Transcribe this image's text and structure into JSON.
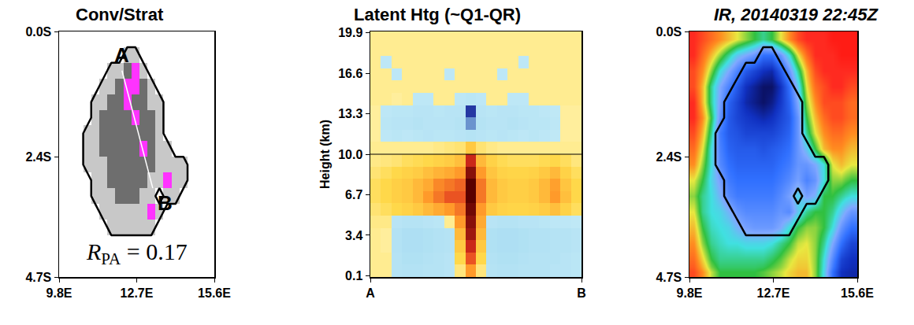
{
  "chart_data": [
    {
      "type": "heatmap",
      "title": "Conv/Strat",
      "x_edges": [
        9.8,
        10.1,
        10.4,
        10.7,
        11.0,
        11.3,
        11.6,
        11.9,
        12.2,
        12.5,
        12.8,
        13.1,
        13.4,
        13.7,
        14.0,
        14.3,
        14.6,
        14.9,
        15.2,
        15.6
      ],
      "y_edges": [
        0,
        -0.3,
        -0.6,
        -0.9,
        -1.2,
        -1.5,
        -1.8,
        -2.1,
        -2.4,
        -2.7,
        -3.0,
        -3.3,
        -3.6,
        -3.9,
        -4.2,
        -4.5,
        -4.7
      ],
      "values": [
        [
          0,
          0,
          0,
          0,
          0,
          0,
          0,
          0,
          0,
          0,
          0,
          0,
          0,
          0,
          0,
          0,
          0,
          0,
          0
        ],
        [
          0,
          0,
          0,
          0,
          0,
          0,
          0,
          0,
          1,
          1,
          0,
          0,
          0,
          0,
          0,
          0,
          0,
          0,
          0
        ],
        [
          0,
          0,
          0,
          0,
          0,
          0,
          1,
          1,
          2,
          3,
          1,
          0,
          0,
          0,
          0,
          0,
          0,
          0,
          0
        ],
        [
          0,
          0,
          0,
          0,
          0,
          1,
          1,
          2,
          3,
          3,
          2,
          1,
          0,
          0,
          0,
          0,
          0,
          0,
          0
        ],
        [
          0,
          0,
          0,
          0,
          1,
          1,
          2,
          2,
          3,
          2,
          2,
          1,
          1,
          0,
          0,
          0,
          0,
          0,
          0
        ],
        [
          0,
          0,
          0,
          0,
          1,
          2,
          2,
          2,
          2,
          3,
          2,
          2,
          1,
          0,
          0,
          0,
          0,
          0,
          0
        ],
        [
          0,
          0,
          0,
          1,
          1,
          2,
          2,
          2,
          2,
          2,
          2,
          2,
          1,
          0,
          0,
          0,
          0,
          0,
          0
        ],
        [
          0,
          0,
          0,
          1,
          1,
          2,
          2,
          2,
          2,
          2,
          3,
          2,
          1,
          1,
          0,
          0,
          0,
          0,
          0
        ],
        [
          0,
          0,
          0,
          1,
          1,
          1,
          2,
          2,
          2,
          2,
          2,
          2,
          1,
          1,
          1,
          1,
          0,
          0,
          0
        ],
        [
          0,
          0,
          0,
          0,
          1,
          1,
          2,
          2,
          2,
          2,
          2,
          1,
          1,
          3,
          1,
          1,
          0,
          0,
          0
        ],
        [
          0,
          0,
          0,
          0,
          1,
          1,
          1,
          2,
          2,
          2,
          1,
          1,
          0,
          1,
          1,
          0,
          0,
          0,
          0
        ],
        [
          0,
          0,
          0,
          0,
          0,
          1,
          1,
          1,
          1,
          1,
          1,
          3,
          1,
          0,
          0,
          0,
          0,
          0,
          0
        ],
        [
          0,
          0,
          0,
          0,
          0,
          0,
          1,
          1,
          1,
          1,
          1,
          1,
          0,
          0,
          0,
          0,
          0,
          0,
          0
        ],
        [
          0,
          0,
          0,
          0,
          0,
          0,
          0,
          0,
          0,
          0,
          0,
          0,
          0,
          0,
          0,
          0,
          0,
          0,
          0
        ],
        [
          0,
          0,
          0,
          0,
          0,
          0,
          0,
          0,
          0,
          0,
          0,
          0,
          0,
          0,
          0,
          0,
          0,
          0,
          0
        ],
        [
          0,
          0,
          0,
          0,
          0,
          0,
          0,
          0,
          0,
          0,
          0,
          0,
          0,
          0,
          0,
          0,
          0,
          0,
          0
        ]
      ],
      "zlim": [
        0,
        3
      ],
      "colors": [
        "#ffffff",
        "#c8c8c8",
        "#6e6e6e",
        "#ff33ff"
      ],
      "outline_level": 0.5,
      "section": {
        "start": {
          "label": "A",
          "lon": 12.15,
          "lat": -0.75
        },
        "end": {
          "label": "B",
          "lon": 13.3,
          "lat": -3.0
        }
      },
      "annotation": {
        "symbol": "R",
        "subscript": "PA",
        "relation": "=",
        "value": 0.17
      },
      "xlim": [
        9.8,
        15.6
      ],
      "xticks": [
        {
          "value": 9.8,
          "label": "9.8E"
        },
        {
          "value": 12.7,
          "label": "12.7E"
        },
        {
          "value": 15.6,
          "label": "15.6E"
        }
      ],
      "ylim": [
        -4.7,
        0
      ],
      "yticks": [
        {
          "value": 0,
          "label": "0.0S"
        },
        {
          "value": -2.4,
          "label": "2.4S"
        },
        {
          "value": -4.7,
          "label": "4.7S"
        }
      ]
    },
    {
      "type": "heatmap",
      "title": "Latent Htg (~Q1-QR)",
      "x_edges": [
        0,
        0.05,
        0.1,
        0.15,
        0.2,
        0.25,
        0.3,
        0.35,
        0.4,
        0.45,
        0.5,
        0.55,
        0.6,
        0.65,
        0.7,
        0.75,
        0.8,
        0.85,
        0.9,
        0.95,
        1
      ],
      "y_edges": [
        0,
        1,
        2,
        3,
        4,
        5,
        6,
        7,
        8,
        9,
        10,
        11,
        12,
        13,
        14,
        15,
        16,
        17,
        18,
        19,
        20
      ],
      "values": [
        [
          0.3,
          0.3,
          -0.6,
          -0.7,
          -0.7,
          -0.6,
          -0.6,
          -0.5,
          0.5,
          3,
          0.5,
          -0.6,
          -0.7,
          -0.7,
          -0.6,
          -0.6,
          -0.6,
          -0.5,
          -0.5,
          -0.4
        ],
        [
          0.3,
          0.3,
          -0.6,
          -0.8,
          -0.8,
          -0.7,
          -0.6,
          -0.5,
          1,
          5,
          1,
          -0.7,
          -0.8,
          -0.8,
          -0.7,
          -0.6,
          -0.6,
          -0.6,
          -0.5,
          -0.4
        ],
        [
          0.3,
          0.2,
          -0.7,
          -0.9,
          -0.9,
          -0.8,
          -0.7,
          -0.6,
          1.5,
          7,
          1.5,
          -0.8,
          -0.9,
          -0.9,
          -0.8,
          -0.7,
          -0.7,
          -0.6,
          -0.6,
          -0.5
        ],
        [
          0.3,
          0.2,
          -0.7,
          -0.9,
          -0.9,
          -0.8,
          -0.7,
          -0.6,
          2,
          9,
          2,
          -0.8,
          -0.9,
          -0.9,
          -0.8,
          -0.7,
          -0.7,
          -0.6,
          -0.6,
          -0.5
        ],
        [
          0.4,
          0.4,
          -0.5,
          -0.6,
          -0.6,
          -0.5,
          -0.4,
          0.3,
          3,
          10,
          2.5,
          -0.5,
          -0.6,
          -0.6,
          -0.5,
          -0.5,
          -0.4,
          -0.3,
          -0.3,
          -0.2
        ],
        [
          0.6,
          0.8,
          1,
          1.2,
          1.5,
          2,
          2.5,
          3,
          4,
          11,
          3,
          1.5,
          1.2,
          1.1,
          1.1,
          1.2,
          1.4,
          1.8,
          1.2,
          0.8
        ],
        [
          0.8,
          1,
          1.3,
          1.5,
          2,
          3,
          4,
          5,
          5,
          12,
          4,
          2,
          1.5,
          1.3,
          1.3,
          1.5,
          2,
          3,
          1.8,
          1
        ],
        [
          0.8,
          1,
          1.3,
          1.5,
          2,
          2.5,
          3.5,
          4,
          4.5,
          12,
          4,
          2,
          1.5,
          1.3,
          1.3,
          1.5,
          2,
          2.8,
          1.6,
          1
        ],
        [
          0.6,
          0.8,
          1,
          1.2,
          1.4,
          1.8,
          2.2,
          2.5,
          3,
          10,
          3,
          1.6,
          1.2,
          1.1,
          1.1,
          1.2,
          1.5,
          2,
          1.2,
          0.8
        ],
        [
          0.4,
          0.5,
          0.6,
          0.8,
          0.9,
          1,
          1.2,
          1.4,
          1.8,
          7,
          2,
          1.2,
          0.9,
          0.8,
          0.8,
          0.8,
          0.9,
          1,
          0.8,
          0.5
        ],
        [
          0.3,
          0.3,
          0.3,
          0.3,
          0.3,
          0.3,
          0.4,
          0.5,
          0.6,
          1.5,
          0.6,
          0.4,
          0.3,
          0.3,
          0.3,
          0.3,
          0.3,
          0.3,
          0.3,
          0.3
        ],
        [
          0.2,
          -0.3,
          -0.4,
          -0.3,
          -0.4,
          -0.5,
          -0.4,
          -0.4,
          -0.5,
          -0.6,
          -0.5,
          -0.4,
          -0.5,
          -0.4,
          -0.3,
          -0.4,
          -0.3,
          -0.2,
          0.2,
          0.2
        ],
        [
          0.2,
          -0.4,
          -0.5,
          -0.5,
          -0.6,
          -0.5,
          -0.5,
          -0.5,
          -0.6,
          -2.5,
          -0.6,
          -0.5,
          -0.5,
          -0.6,
          -0.5,
          -0.4,
          -0.4,
          -0.3,
          0.2,
          0.2
        ],
        [
          0.2,
          -0.3,
          -0.4,
          -0.4,
          -0.5,
          -0.5,
          -0.4,
          -0.5,
          -0.5,
          -3.8,
          -0.5,
          -0.4,
          -0.5,
          -0.5,
          -0.4,
          -0.4,
          -0.3,
          -0.2,
          0.2,
          0.2
        ],
        [
          0.3,
          0.3,
          0.2,
          0.3,
          -0.3,
          -0.3,
          0.3,
          0.3,
          -0.3,
          -0.4,
          -0.3,
          0.3,
          0.3,
          -0.3,
          -0.3,
          0.3,
          0.3,
          0.3,
          0.3,
          0.3
        ],
        [
          0.3,
          0.3,
          0.3,
          0.3,
          0.3,
          0.3,
          0.3,
          0.3,
          0.3,
          0.3,
          0.3,
          0.3,
          0.3,
          0.3,
          0.3,
          0.3,
          0.3,
          0.3,
          0.3,
          0.3
        ],
        [
          0.3,
          0.3,
          -0.3,
          0.3,
          0.3,
          0.3,
          0.3,
          -0.3,
          0.3,
          0.3,
          0.3,
          0.3,
          -0.3,
          0.3,
          0.3,
          0.3,
          0.3,
          0.3,
          0.3,
          0.3
        ],
        [
          0.3,
          -0.3,
          0.3,
          0.3,
          0.3,
          0.3,
          0.3,
          0.3,
          0.3,
          0.3,
          0.3,
          0.3,
          0.3,
          0.3,
          -0.3,
          0.3,
          0.3,
          0.3,
          0.3,
          0.3
        ],
        [
          0.3,
          0.3,
          0.3,
          0.3,
          0.3,
          0.3,
          0.3,
          0.3,
          0.3,
          0.3,
          0.3,
          0.3,
          0.3,
          0.3,
          0.3,
          0.3,
          0.3,
          0.3,
          0.3,
          0.3
        ],
        [
          0.3,
          0.3,
          0.3,
          0.3,
          0.3,
          0.3,
          0.3,
          0.3,
          0.3,
          0.3,
          0.3,
          0.3,
          0.3,
          0.3,
          0.3,
          0.3,
          0.3,
          0.3,
          0.3,
          0.3
        ]
      ],
      "zlim": [
        -4,
        12
      ],
      "hline": 10,
      "ylabel": "Height (km)",
      "xlim": [
        0,
        1
      ],
      "xticks": [
        {
          "value": 0,
          "label": "A"
        },
        {
          "value": 1,
          "label": "B"
        }
      ],
      "ylim": [
        0,
        20
      ],
      "yticks": [
        0.1,
        3.4,
        6.7,
        {
          "value": 10,
          "label": "10.0"
        },
        13.3,
        16.6,
        19.9
      ]
    },
    {
      "type": "heatmap",
      "title": "IR, 20140319 22:45Z",
      "x_edges": [
        9.8,
        10.1,
        10.4,
        10.7,
        11.0,
        11.3,
        11.6,
        11.9,
        12.2,
        12.5,
        12.8,
        13.1,
        13.4,
        13.7,
        14.0,
        14.3,
        14.6,
        14.9,
        15.2,
        15.6
      ],
      "y_edges": [
        0,
        -0.3,
        -0.6,
        -0.9,
        -1.2,
        -1.5,
        -1.8,
        -2.1,
        -2.4,
        -2.7,
        -3.0,
        -3.3,
        -3.6,
        -3.9,
        -4.2,
        -4.5,
        -4.7
      ],
      "values": [
        [
          285,
          280,
          275,
          270,
          265,
          260,
          255,
          250,
          245,
          250,
          260,
          270,
          280,
          285,
          285,
          285,
          290,
          290,
          290
        ],
        [
          285,
          275,
          265,
          255,
          245,
          235,
          230,
          225,
          215,
          215,
          225,
          240,
          260,
          275,
          285,
          285,
          285,
          290,
          290
        ],
        [
          280,
          270,
          255,
          240,
          230,
          220,
          210,
          205,
          200,
          198,
          210,
          225,
          245,
          265,
          280,
          285,
          285,
          285,
          285
        ],
        [
          280,
          265,
          245,
          230,
          220,
          210,
          200,
          196,
          192,
          192,
          200,
          215,
          235,
          260,
          275,
          280,
          285,
          285,
          280
        ],
        [
          285,
          265,
          245,
          228,
          212,
          205,
          198,
          195,
          192,
          195,
          202,
          212,
          230,
          255,
          270,
          280,
          280,
          280,
          275
        ],
        [
          285,
          270,
          250,
          225,
          210,
          205,
          202,
          200,
          198,
          200,
          205,
          210,
          225,
          250,
          265,
          275,
          280,
          280,
          275
        ],
        [
          280,
          265,
          245,
          218,
          210,
          208,
          205,
          205,
          205,
          205,
          208,
          212,
          225,
          245,
          260,
          270,
          275,
          275,
          270
        ],
        [
          275,
          260,
          240,
          220,
          212,
          210,
          210,
          210,
          208,
          210,
          212,
          215,
          225,
          235,
          250,
          265,
          270,
          270,
          265
        ],
        [
          270,
          255,
          240,
          222,
          215,
          212,
          212,
          212,
          212,
          212,
          215,
          218,
          225,
          225,
          230,
          240,
          260,
          265,
          260
        ],
        [
          260,
          250,
          238,
          228,
          218,
          215,
          215,
          215,
          215,
          215,
          218,
          222,
          228,
          220,
          225,
          240,
          255,
          255,
          250
        ],
        [
          255,
          245,
          240,
          232,
          222,
          218,
          218,
          218,
          218,
          218,
          222,
          228,
          238,
          228,
          232,
          250,
          250,
          245,
          240
        ],
        [
          260,
          245,
          240,
          238,
          232,
          225,
          222,
          222,
          222,
          222,
          225,
          222,
          235,
          245,
          250,
          250,
          245,
          235,
          225
        ],
        [
          265,
          250,
          242,
          240,
          238,
          232,
          228,
          226,
          226,
          226,
          230,
          240,
          250,
          255,
          255,
          250,
          240,
          225,
          215
        ],
        [
          270,
          255,
          245,
          242,
          240,
          240,
          238,
          238,
          238,
          240,
          245,
          250,
          258,
          260,
          255,
          245,
          230,
          215,
          205
        ],
        [
          275,
          262,
          250,
          245,
          245,
          245,
          245,
          245,
          245,
          248,
          252,
          258,
          262,
          262,
          255,
          240,
          222,
          205,
          200
        ],
        [
          280,
          270,
          258,
          250,
          250,
          250,
          250,
          250,
          252,
          255,
          258,
          262,
          265,
          265,
          255,
          238,
          215,
          200,
          198
        ]
      ],
      "zlim": [
        190,
        300
      ],
      "xlim": [
        9.8,
        15.6
      ],
      "xticks": [
        {
          "value": 9.8,
          "label": "9.8E"
        },
        {
          "value": 12.7,
          "label": "12.7E"
        },
        {
          "value": 15.6,
          "label": "15.6E"
        }
      ],
      "ylim": [
        -4.7,
        0
      ],
      "yticks": [
        {
          "value": 0,
          "label": "0.0S"
        },
        {
          "value": -2.4,
          "label": "2.4S"
        },
        {
          "value": -4.7,
          "label": "4.7S"
        }
      ]
    }
  ]
}
